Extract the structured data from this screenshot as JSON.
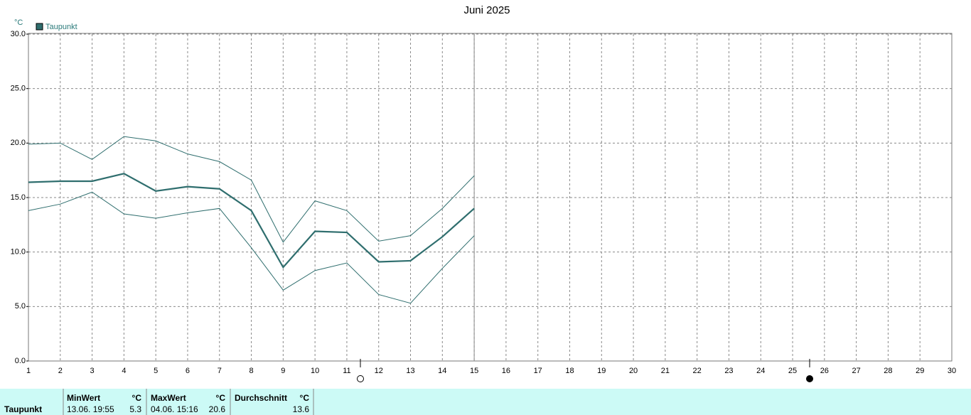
{
  "chart_data": {
    "type": "line",
    "title": "Juni 2025",
    "y_unit": "°C",
    "x": [
      1,
      2,
      3,
      4,
      5,
      6,
      7,
      8,
      9,
      10,
      11,
      12,
      13,
      14,
      15
    ],
    "xlim": [
      1,
      30
    ],
    "xticks": [
      1,
      2,
      3,
      4,
      5,
      6,
      7,
      8,
      9,
      10,
      11,
      12,
      13,
      14,
      15,
      16,
      17,
      18,
      19,
      20,
      21,
      22,
      23,
      24,
      25,
      26,
      27,
      28,
      29,
      30
    ],
    "ylim": [
      0,
      30
    ],
    "yticks": [
      {
        "value": 0,
        "label": "0.0"
      },
      {
        "value": 5,
        "label": "5.0"
      },
      {
        "value": 10,
        "label": "10.0"
      },
      {
        "value": 15,
        "label": "15.0"
      },
      {
        "value": 20,
        "label": "20.0"
      },
      {
        "value": 25,
        "label": "25.0"
      },
      {
        "value": 30,
        "label": "30.0"
      }
    ],
    "grid": true,
    "series": [
      {
        "name": "Taupunkt",
        "color": "#2f6e6e",
        "values": [
          16.4,
          16.5,
          16.5,
          17.2,
          15.6,
          16.0,
          15.8,
          13.8,
          8.6,
          11.9,
          11.8,
          9.1,
          9.2,
          11.4,
          14.0
        ],
        "max": [
          19.9,
          20.0,
          18.5,
          20.6,
          20.2,
          19.0,
          18.3,
          16.6,
          10.9,
          14.7,
          13.8,
          11.0,
          11.5,
          14.0,
          17.0
        ],
        "min": [
          13.8,
          14.4,
          15.5,
          13.5,
          13.1,
          13.6,
          14.0,
          10.4,
          6.5,
          8.3,
          9.0,
          6.1,
          5.3,
          8.5,
          11.5
        ]
      }
    ]
  },
  "stats": {
    "label": "Taupunkt",
    "min": {
      "header": "MinWert",
      "unit": "°C",
      "time": "13.06.  19:55",
      "value": 5.3
    },
    "max": {
      "header": "MaxWert",
      "unit": "°C",
      "time": "04.06.  15:16",
      "value": 20.6
    },
    "avg": {
      "header": "Durchschnitt",
      "unit": "°C",
      "value": 13.6
    }
  }
}
